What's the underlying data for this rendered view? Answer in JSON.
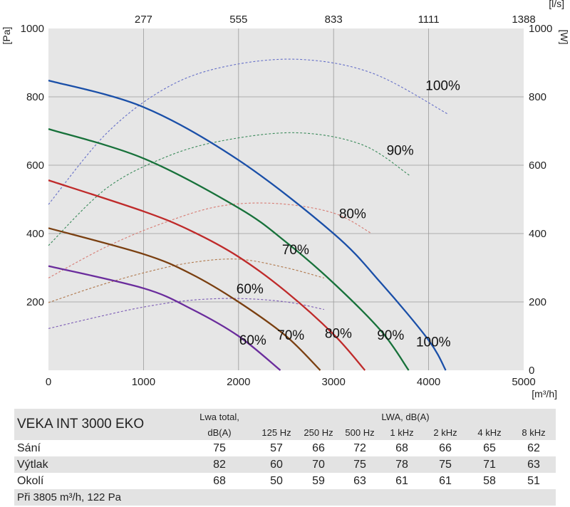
{
  "chart_data": {
    "type": "line",
    "x_axis_bottom": {
      "ticks": [
        0,
        1000,
        2000,
        3000,
        4000,
        5000
      ],
      "unit": "[m³/h]",
      "range": [
        0,
        5000
      ]
    },
    "x_axis_top": {
      "ticks": [
        "277",
        "555",
        "833",
        "1111",
        "1388"
      ],
      "tick_positions_m3h": [
        1000,
        2000,
        3000,
        4000,
        5000
      ],
      "unit": "[l/s]"
    },
    "y_axis_left": {
      "ticks": [
        200,
        400,
        600,
        800,
        1000
      ],
      "unit": "[Pa]",
      "range": [
        0,
        1000
      ]
    },
    "y_axis_right": {
      "ticks": [
        0,
        200,
        400,
        600,
        800,
        1000
      ],
      "unit": "[W]",
      "range": [
        0,
        1000
      ]
    },
    "grid": true,
    "pressure_curves": [
      {
        "label": "100%",
        "color": "#1a4fa8",
        "points": [
          [
            0,
            848
          ],
          [
            1000,
            770
          ],
          [
            2000,
            615
          ],
          [
            3000,
            400
          ],
          [
            3500,
            255
          ],
          [
            4000,
            88
          ],
          [
            4180,
            0
          ]
        ]
      },
      {
        "label": "90%",
        "color": "#17713a",
        "points": [
          [
            0,
            706
          ],
          [
            1000,
            620
          ],
          [
            2000,
            475
          ],
          [
            2500,
            375
          ],
          [
            3000,
            255
          ],
          [
            3500,
            115
          ],
          [
            3790,
            0
          ]
        ]
      },
      {
        "label": "80%",
        "color": "#bf2a2a",
        "points": [
          [
            0,
            556
          ],
          [
            1000,
            465
          ],
          [
            1500,
            408
          ],
          [
            2000,
            332
          ],
          [
            2500,
            230
          ],
          [
            3000,
            105
          ],
          [
            3330,
            0
          ]
        ]
      },
      {
        "label": "70%",
        "color": "#7a3f10",
        "points": [
          [
            0,
            416
          ],
          [
            1000,
            340
          ],
          [
            1500,
            282
          ],
          [
            2000,
            200
          ],
          [
            2500,
            100
          ],
          [
            2860,
            0
          ]
        ]
      },
      {
        "label": "60%",
        "color": "#6a2c9c",
        "points": [
          [
            0,
            305
          ],
          [
            1000,
            240
          ],
          [
            1500,
            180
          ],
          [
            2000,
            100
          ],
          [
            2440,
            0
          ]
        ]
      }
    ],
    "power_curves": [
      {
        "label": "100%",
        "color": "#6670c8",
        "points": [
          [
            0,
            485
          ],
          [
            600,
            690
          ],
          [
            1200,
            820
          ],
          [
            1800,
            885
          ],
          [
            2600,
            910
          ],
          [
            3400,
            870
          ],
          [
            4200,
            750
          ]
        ]
      },
      {
        "label": "90%",
        "color": "#3a8a5a",
        "points": [
          [
            0,
            365
          ],
          [
            600,
            530
          ],
          [
            1200,
            620
          ],
          [
            1800,
            670
          ],
          [
            2600,
            695
          ],
          [
            3300,
            660
          ],
          [
            3800,
            570
          ]
        ]
      },
      {
        "label": "80%",
        "color": "#d77b72",
        "points": [
          [
            0,
            270
          ],
          [
            600,
            360
          ],
          [
            1200,
            430
          ],
          [
            1800,
            480
          ],
          [
            2400,
            488
          ],
          [
            3000,
            460
          ],
          [
            3400,
            400
          ]
        ]
      },
      {
        "label": "70%",
        "color": "#b0784c",
        "points": [
          [
            0,
            198
          ],
          [
            500,
            245
          ],
          [
            1000,
            285
          ],
          [
            1500,
            315
          ],
          [
            2000,
            325
          ],
          [
            2500,
            300
          ],
          [
            2900,
            270
          ]
        ]
      },
      {
        "label": "60%",
        "color": "#7b5bb5",
        "points": [
          [
            0,
            122
          ],
          [
            500,
            155
          ],
          [
            1000,
            185
          ],
          [
            1500,
            205
          ],
          [
            2000,
            210
          ],
          [
            2500,
            200
          ],
          [
            2900,
            178
          ]
        ]
      }
    ],
    "annotations": [
      {
        "text": "100%",
        "x": 4150,
        "y": 820
      },
      {
        "text": "90%",
        "x": 3700,
        "y": 630
      },
      {
        "text": "80%",
        "x": 3200,
        "y": 445
      },
      {
        "text": "70%",
        "x": 2600,
        "y": 340
      },
      {
        "text": "60%",
        "x": 2120,
        "y": 225
      },
      {
        "text": "100%",
        "x": 4050,
        "y": 70
      },
      {
        "text": "90%",
        "x": 3600,
        "y": 90
      },
      {
        "text": "80%",
        "x": 3050,
        "y": 95
      },
      {
        "text": "70%",
        "x": 2550,
        "y": 90
      },
      {
        "text": "60%",
        "x": 2150,
        "y": 75
      }
    ]
  },
  "table": {
    "model": "VEKA INT 3000 EKO",
    "lwa_total_header": [
      "Lwa total,",
      "dB(A)"
    ],
    "lwa_header": "LWA, dB(A)",
    "bands": [
      "125  Hz",
      "250  Hz",
      "500  Hz",
      "1 kHz",
      "2 kHz",
      "4 kHz",
      "8 kHz"
    ],
    "rows": [
      {
        "label": "Sání",
        "total": "75",
        "values": [
          "57",
          "66",
          "72",
          "68",
          "66",
          "65",
          "62"
        ]
      },
      {
        "label": "Výtlak",
        "total": "82",
        "values": [
          "60",
          "70",
          "75",
          "78",
          "75",
          "71",
          "63"
        ]
      },
      {
        "label": "Okolí",
        "total": "68",
        "values": [
          "50",
          "59",
          "63",
          "61",
          "61",
          "58",
          "51"
        ]
      }
    ],
    "footnote": "Při 3805  m³/h, 122 Pa"
  }
}
